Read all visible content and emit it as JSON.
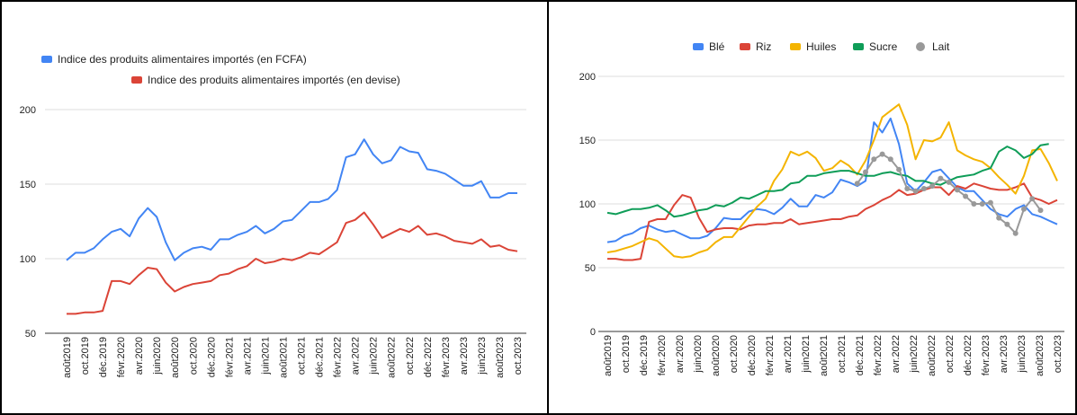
{
  "chart_data": [
    {
      "type": "line",
      "title": "",
      "xlabel": "",
      "ylabel": "",
      "ylim": [
        50,
        200
      ],
      "yticks": [
        50,
        100,
        150,
        200
      ],
      "grid": true,
      "legend_position": "top-left",
      "x_tick_labels": [
        "août2019",
        "oct.2019",
        "déc.2019",
        "févr.2020",
        "avr.2020",
        "juin2020",
        "août2020",
        "oct.2020",
        "déc.2020",
        "févr.2021",
        "avr.2021",
        "juin2021",
        "août2021",
        "oct.2021",
        "déc.2021",
        "févr.2022",
        "avr.2022",
        "juin2022",
        "août2022",
        "oct.2022",
        "déc.2022",
        "févr.2023",
        "avr.2023",
        "juin2023",
        "août2023",
        "oct.2023"
      ],
      "series": [
        {
          "name": "Indice des produits alimentaires importés (en FCFA)",
          "color": "#4285f4",
          "values": [
            99,
            104,
            104,
            107,
            113,
            118,
            120,
            115,
            127,
            134,
            128,
            111,
            99,
            104,
            107,
            108,
            106,
            113,
            113,
            116,
            118,
            122,
            117,
            120,
            125,
            126,
            132,
            138,
            138,
            140,
            146,
            168,
            170,
            180,
            170,
            164,
            166,
            175,
            172,
            171,
            160,
            159,
            157,
            153,
            149,
            149,
            152,
            141,
            141,
            144,
            144
          ]
        },
        {
          "name": "Indice des produits alimentaires importés (en devise)",
          "color": "#db4437",
          "values": [
            63,
            63,
            64,
            64,
            65,
            85,
            85,
            83,
            89,
            94,
            93,
            84,
            78,
            81,
            83,
            84,
            85,
            89,
            90,
            93,
            95,
            100,
            97,
            98,
            100,
            99,
            101,
            104,
            103,
            107,
            111,
            124,
            126,
            131,
            123,
            114,
            117,
            120,
            118,
            122,
            116,
            117,
            115,
            112,
            111,
            110,
            113,
            108,
            109,
            106,
            105
          ]
        }
      ]
    },
    {
      "type": "line",
      "title": "",
      "xlabel": "",
      "ylabel": "",
      "ylim": [
        0,
        200
      ],
      "yticks": [
        0,
        50,
        100,
        150,
        200
      ],
      "grid": true,
      "legend_position": "top",
      "x_tick_labels": [
        "août2019",
        "oct.2019",
        "déc.2019",
        "févr.2020",
        "avr.2020",
        "juin2020",
        "août2020",
        "oct.2020",
        "déc.2020",
        "févr.2021",
        "avr.2021",
        "juin2021",
        "août2021",
        "oct.2021",
        "déc.2021",
        "févr.2022",
        "avr.2022",
        "juin2022",
        "août2022",
        "oct.2022",
        "déc.2022",
        "févr.2023",
        "avr.2023",
        "juin2023",
        "août2023",
        "oct.2023"
      ],
      "series": [
        {
          "name": "Blé",
          "color": "#4285f4",
          "values": [
            70,
            71,
            75,
            77,
            81,
            83,
            80,
            78,
            79,
            76,
            73,
            73,
            75,
            81,
            89,
            88,
            88,
            94,
            96,
            95,
            92,
            97,
            104,
            98,
            98,
            107,
            105,
            109,
            119,
            117,
            114,
            118,
            164,
            156,
            167,
            147,
            116,
            110,
            117,
            125,
            127,
            120,
            113,
            110,
            110,
            103,
            96,
            92,
            90,
            96,
            99,
            92,
            90,
            87,
            84
          ]
        },
        {
          "name": "Riz",
          "color": "#db4437",
          "values": [
            57,
            57,
            56,
            56,
            57,
            86,
            88,
            88,
            99,
            107,
            105,
            89,
            78,
            80,
            81,
            81,
            80,
            83,
            84,
            84,
            85,
            85,
            88,
            84,
            85,
            86,
            87,
            88,
            88,
            90,
            91,
            96,
            99,
            103,
            106,
            111,
            107,
            108,
            111,
            113,
            113,
            107,
            114,
            112,
            116,
            114,
            112,
            111,
            111,
            113,
            116,
            105,
            103,
            100,
            103
          ]
        },
        {
          "name": "Huiles",
          "color": "#f4b400",
          "values": [
            62,
            63,
            65,
            67,
            70,
            73,
            71,
            65,
            59,
            58,
            59,
            62,
            64,
            70,
            74,
            74,
            82,
            90,
            98,
            104,
            118,
            127,
            141,
            138,
            141,
            136,
            126,
            128,
            134,
            130,
            123,
            134,
            150,
            168,
            173,
            178,
            162,
            135,
            150,
            149,
            152,
            164,
            142,
            138,
            135,
            133,
            128,
            121,
            115,
            108,
            122,
            142,
            143,
            132,
            118
          ]
        },
        {
          "name": "Sucre",
          "color": "#0f9d58",
          "values": [
            93,
            92,
            94,
            96,
            96,
            97,
            99,
            95,
            90,
            91,
            93,
            95,
            96,
            99,
            98,
            101,
            105,
            104,
            107,
            110,
            110,
            111,
            116,
            117,
            122,
            122,
            124,
            125,
            126,
            126,
            124,
            122,
            122,
            124,
            125,
            123,
            122,
            118,
            118,
            116,
            115,
            118,
            121,
            122,
            123,
            126,
            128,
            141,
            145,
            142,
            136,
            139,
            146,
            147,
            null
          ]
        },
        {
          "name": "Lait",
          "color": "#999999",
          "values": [
            null,
            null,
            null,
            null,
            null,
            null,
            null,
            null,
            null,
            null,
            null,
            null,
            null,
            null,
            null,
            null,
            null,
            null,
            null,
            null,
            null,
            null,
            null,
            null,
            null,
            null,
            null,
            null,
            null,
            null,
            116,
            125,
            135,
            139,
            135,
            127,
            112,
            110,
            112,
            114,
            120,
            117,
            111,
            106,
            100,
            100,
            101,
            89,
            84,
            77,
            96,
            104,
            95,
            null,
            null
          ]
        }
      ]
    }
  ]
}
